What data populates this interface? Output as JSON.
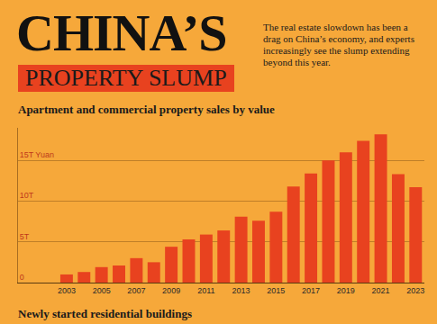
{
  "header": {
    "title": "CHINA’S",
    "banner": "PROPERTY SLUMP",
    "subtitle": "The real estate slowdown has been a drag on China’s economy, and experts increasingly see the slump extending beyond this year."
  },
  "chart_data": {
    "type": "bar",
    "title": "Apartment and commercial property sales by value",
    "categories": [
      "2003",
      null,
      "2005",
      null,
      "2007",
      null,
      "2009",
      null,
      "2011",
      null,
      "2013",
      null,
      "2015",
      null,
      "2017",
      null,
      "2019",
      null,
      "2021",
      null,
      "2023"
    ],
    "values": [
      1.0,
      1.3,
      1.9,
      2.1,
      3.0,
      2.5,
      4.4,
      5.3,
      5.9,
      6.4,
      8.1,
      7.6,
      8.7,
      11.8,
      13.4,
      15.0,
      16.0,
      17.4,
      18.2,
      13.3,
      11.7
    ],
    "color": "#e8421f",
    "ylim": [
      0,
      19
    ],
    "yticks": [
      0,
      {
        "value": 5,
        "label": "5T"
      },
      {
        "value": 10,
        "label": "10T"
      },
      {
        "value": 15,
        "label": "15T Yuan"
      }
    ],
    "grid": true
  },
  "footer": {
    "section_title": "Newly started residential buildings"
  }
}
